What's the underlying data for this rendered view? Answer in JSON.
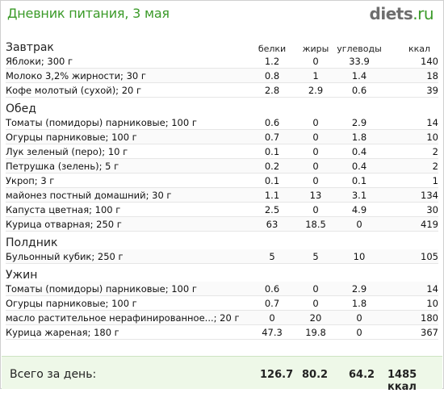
{
  "header": {
    "title": "Дневник питания, 3 мая",
    "logo_main": "diets",
    "logo_tld": ".ru"
  },
  "columns": {
    "protein": "белки",
    "fat": "жиры",
    "carbs": "углеводы",
    "kcal": "ккал"
  },
  "meals": [
    {
      "name": "Завтрак",
      "items": [
        {
          "name": "Яблоки; 300 г",
          "protein": "1.2",
          "fat": "0",
          "carbs": "33.9",
          "kcal": "140"
        },
        {
          "name": "Молоко 3,2% жирности; 30 г",
          "protein": "0.8",
          "fat": "1",
          "carbs": "1.4",
          "kcal": "18"
        },
        {
          "name": "Кофе молотый (сухой); 20 г",
          "protein": "2.8",
          "fat": "2.9",
          "carbs": "0.6",
          "kcal": "39"
        }
      ]
    },
    {
      "name": "Обед",
      "items": [
        {
          "name": "Томаты (помидоры) парниковые; 100 г",
          "protein": "0.6",
          "fat": "0",
          "carbs": "2.9",
          "kcal": "14"
        },
        {
          "name": "Огурцы парниковые; 100 г",
          "protein": "0.7",
          "fat": "0",
          "carbs": "1.8",
          "kcal": "10"
        },
        {
          "name": "Лук зеленый (перо); 10 г",
          "protein": "0.1",
          "fat": "0",
          "carbs": "0.4",
          "kcal": "2"
        },
        {
          "name": "Петрушка (зелень); 5 г",
          "protein": "0.2",
          "fat": "0",
          "carbs": "0.4",
          "kcal": "2"
        },
        {
          "name": "Укроп; 3 г",
          "protein": "0.1",
          "fat": "0",
          "carbs": "0.1",
          "kcal": "1"
        },
        {
          "name": "майонез постный домашний; 30 г",
          "protein": "1.1",
          "fat": "13",
          "carbs": "3.1",
          "kcal": "134"
        },
        {
          "name": "Капуста цветная; 100 г",
          "protein": "2.5",
          "fat": "0",
          "carbs": "4.9",
          "kcal": "30"
        },
        {
          "name": "Курица отварная; 250 г",
          "protein": "63",
          "fat": "18.5",
          "carbs": "0",
          "kcal": "419"
        }
      ]
    },
    {
      "name": "Полдник",
      "items": [
        {
          "name": "Бульонный кубик; 250 г",
          "protein": "5",
          "fat": "5",
          "carbs": "10",
          "kcal": "105"
        }
      ]
    },
    {
      "name": "Ужин",
      "items": [
        {
          "name": "Томаты (помидоры) парниковые; 100 г",
          "protein": "0.6",
          "fat": "0",
          "carbs": "2.9",
          "kcal": "14"
        },
        {
          "name": "Огурцы парниковые; 100 г",
          "protein": "0.7",
          "fat": "0",
          "carbs": "1.8",
          "kcal": "10"
        },
        {
          "name": "масло растительное нерафинированное...; 20 г",
          "protein": "0",
          "fat": "20",
          "carbs": "0",
          "kcal": "180"
        },
        {
          "name": "Курица жареная; 180 г",
          "protein": "47.3",
          "fat": "19.8",
          "carbs": "0",
          "kcal": "367"
        }
      ]
    }
  ],
  "totals": {
    "label": "Всего за день:",
    "protein": "126.7",
    "fat": "80.2",
    "carbs": "64.2",
    "kcal": "1485 ккал"
  }
}
